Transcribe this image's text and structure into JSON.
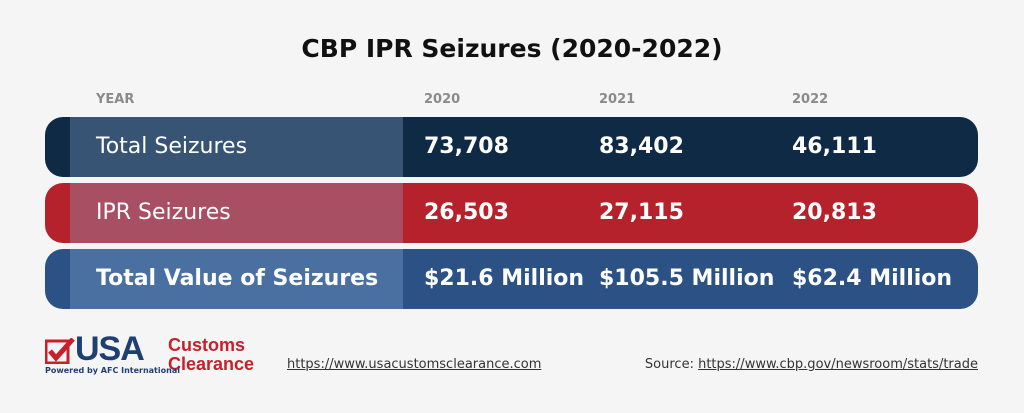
{
  "header": {
    "title": "CBP IPR Seizures (2020-2022)"
  },
  "table": {
    "columns": [
      "YEAR",
      "2020",
      "2021",
      "2022"
    ],
    "rows": [
      [
        "Total Seizures",
        "73,708",
        "83,402",
        "46,111"
      ],
      [
        "IPR Seizures",
        "26,503",
        "27,115",
        "20,813"
      ],
      [
        "Total Value of Seizures",
        "$21.6 Million",
        "$105.5 Million",
        "$62.4 Million"
      ]
    ]
  },
  "footer": {
    "logo": {
      "brand": "USA",
      "name_line1": "Customs",
      "name_line2": "Clearance",
      "tagline": "Powered by AFC International"
    },
    "website": "https://www.usacustomsclearance.com",
    "source_label": "Source:",
    "source_url": "https://www.cbp.gov/newsroom/stats/trade"
  }
}
